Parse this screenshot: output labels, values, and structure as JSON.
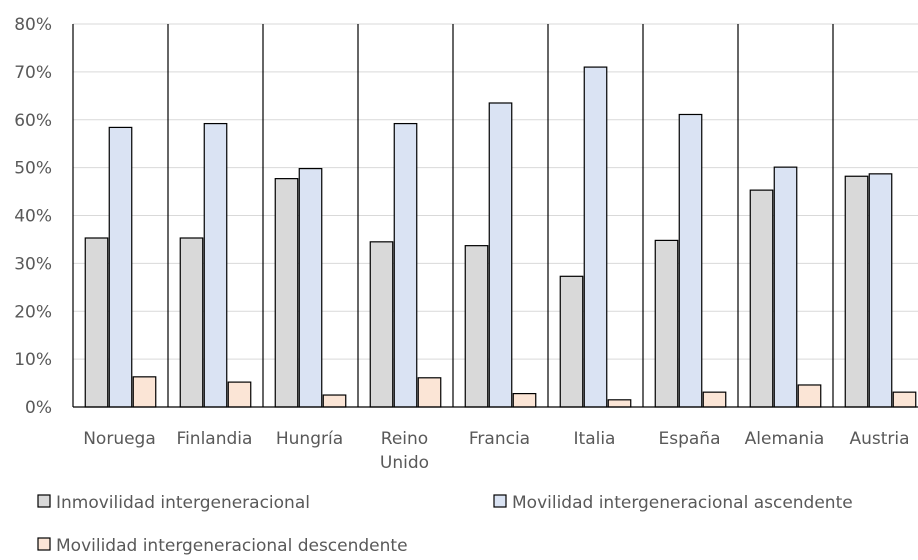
{
  "chart_data": {
    "type": "bar",
    "categories": [
      [
        "Noruega"
      ],
      [
        "Finlandia"
      ],
      [
        "Hungría"
      ],
      [
        "Reino",
        "Unido"
      ],
      [
        "Francia"
      ],
      [
        "Italia"
      ],
      [
        "España"
      ],
      [
        "Alemania"
      ],
      [
        "Austria"
      ]
    ],
    "series": [
      {
        "name": "Inmovilidad intergeneracional",
        "color": "#d9d9d9",
        "values": [
          35.3,
          35.3,
          47.7,
          34.5,
          33.7,
          27.3,
          34.8,
          45.3,
          48.2
        ]
      },
      {
        "name": "Movilidad intergeneracional ascendente",
        "color": "#dae3f3",
        "values": [
          58.4,
          59.2,
          49.8,
          59.2,
          63.5,
          71.0,
          61.1,
          50.1,
          48.7
        ]
      },
      {
        "name": "Movilidad intergeneracional descendente",
        "color": "#fbe5d6",
        "values": [
          6.3,
          5.2,
          2.5,
          6.1,
          2.8,
          1.5,
          3.1,
          4.6,
          3.1
        ]
      }
    ],
    "y_ticks": [
      "0%",
      "10%",
      "20%",
      "30%",
      "40%",
      "50%",
      "60%",
      "70%",
      "80%"
    ],
    "ylim": [
      0,
      80
    ],
    "grid": true,
    "legend_position": "bottom"
  }
}
